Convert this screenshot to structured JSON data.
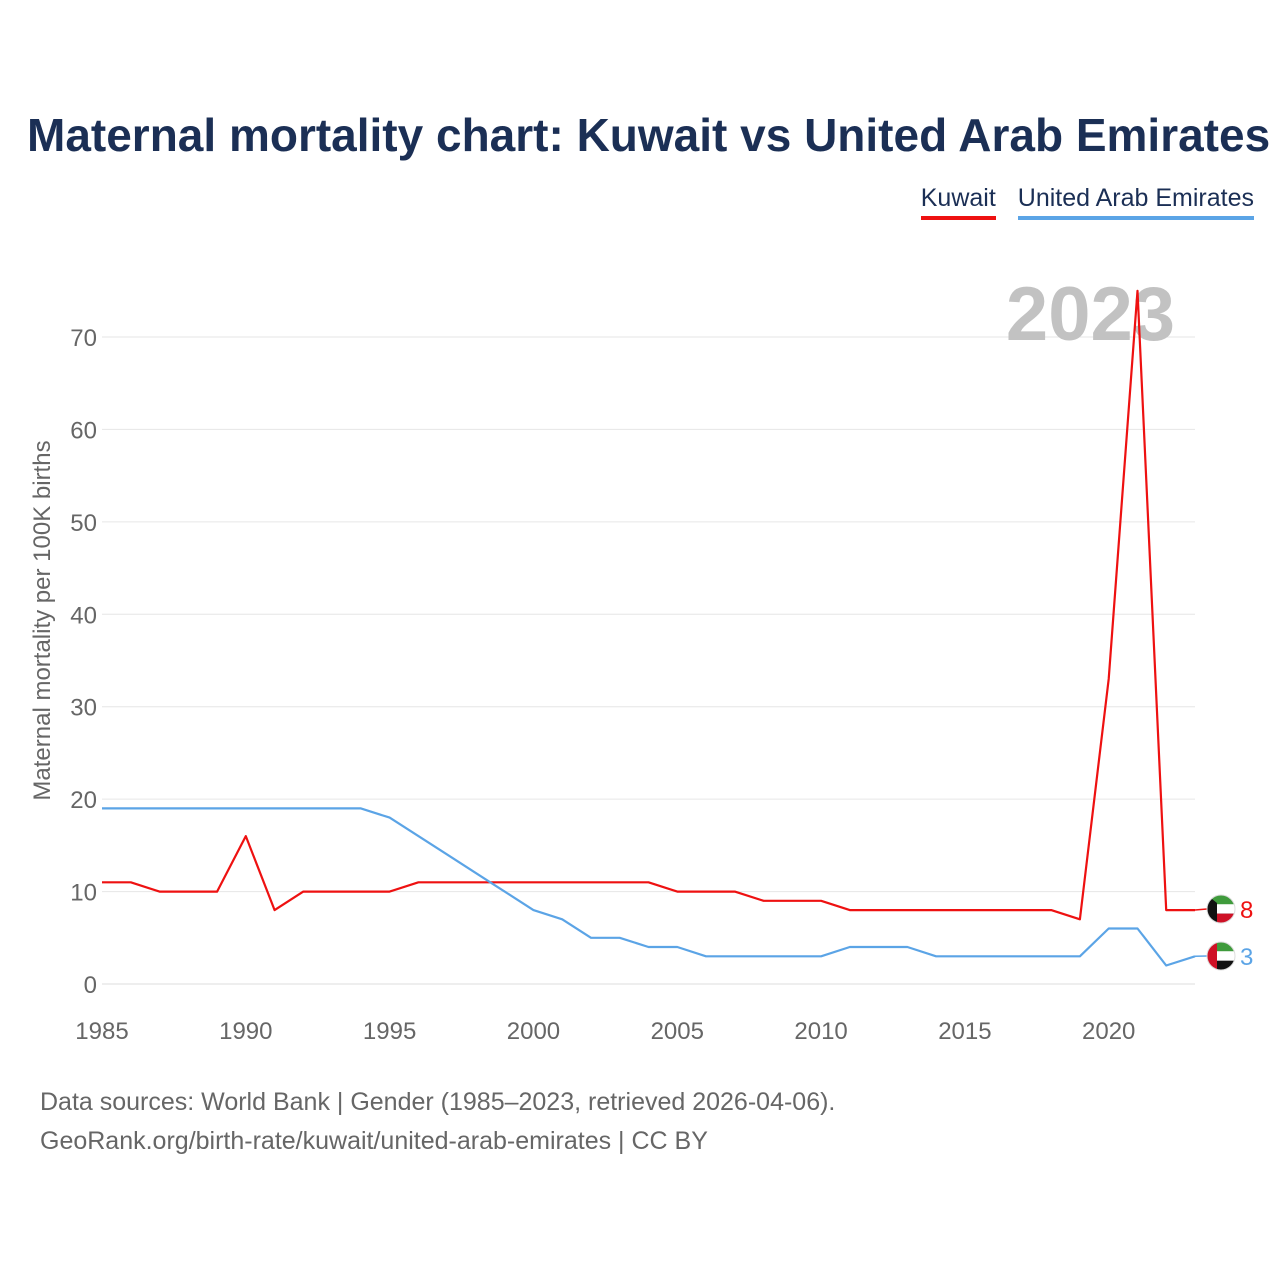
{
  "title": "Maternal mortality chart: Kuwait vs United Arab Emirates",
  "legend": [
    {
      "label": "Kuwait",
      "color": "#ee1111"
    },
    {
      "label": "United Arab Emirates",
      "color": "#5ba4e6"
    }
  ],
  "source_line1": "Data sources: World Bank | Gender (1985–2023, retrieved 2026-04-06).",
  "source_line2": "GeoRank.org/birth-rate/kuwait/united-arab-emirates | CC BY",
  "chart_data": {
    "type": "line",
    "title": "Maternal mortality chart: Kuwait vs United Arab Emirates",
    "xlabel": "",
    "ylabel": "Maternal mortality per 100K births",
    "year_label": "2023",
    "xlim": [
      1985,
      2023
    ],
    "ylim": [
      0,
      75
    ],
    "x_ticks": [
      1985,
      1990,
      1995,
      2000,
      2005,
      2010,
      2015,
      2020
    ],
    "y_ticks": [
      0,
      10,
      20,
      30,
      40,
      50,
      60,
      70
    ],
    "grid": true,
    "legend_position": "top-right",
    "x": [
      1985,
      1986,
      1987,
      1988,
      1989,
      1990,
      1991,
      1992,
      1993,
      1994,
      1995,
      1996,
      1997,
      1998,
      1999,
      2000,
      2001,
      2002,
      2003,
      2004,
      2005,
      2006,
      2007,
      2008,
      2009,
      2010,
      2011,
      2012,
      2013,
      2014,
      2015,
      2016,
      2017,
      2018,
      2019,
      2020,
      2021,
      2022,
      2023
    ],
    "series": [
      {
        "name": "Kuwait",
        "color": "#ee1111",
        "end_label": "8",
        "values": [
          11,
          11,
          10,
          10,
          10,
          16,
          8,
          10,
          10,
          10,
          10,
          11,
          11,
          11,
          11,
          11,
          11,
          11,
          11,
          11,
          10,
          10,
          10,
          9,
          9,
          9,
          8,
          8,
          8,
          8,
          8,
          8,
          8,
          8,
          7,
          33,
          75,
          8,
          8
        ]
      },
      {
        "name": "United Arab Emirates",
        "color": "#5ba4e6",
        "end_label": "3",
        "values": [
          19,
          19,
          19,
          19,
          19,
          19,
          19,
          19,
          19,
          19,
          18,
          16,
          14,
          12,
          10,
          8,
          7,
          5,
          5,
          4,
          4,
          3,
          3,
          3,
          3,
          3,
          4,
          4,
          4,
          3,
          3,
          3,
          3,
          3,
          3,
          6,
          6,
          2,
          3
        ]
      }
    ]
  }
}
